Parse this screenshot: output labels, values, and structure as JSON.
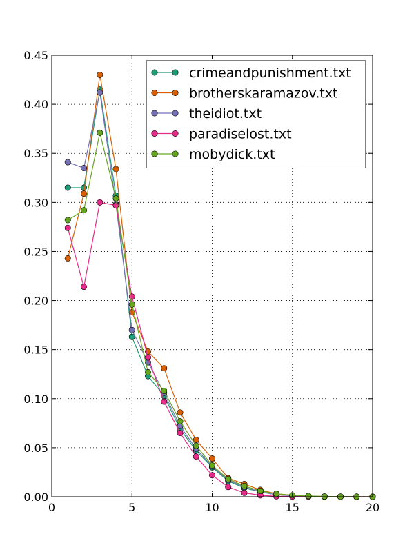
{
  "chart_data": {
    "type": "line",
    "title": "",
    "xlabel": "",
    "ylabel": "",
    "xlim": [
      0,
      20
    ],
    "ylim": [
      0,
      0.45
    ],
    "grid": true,
    "legend_position": "top-right",
    "x_ticks": [
      "0",
      "5",
      "10",
      "15",
      "20"
    ],
    "y_ticks": [
      "0.00",
      "0.05",
      "0.10",
      "0.15",
      "0.20",
      "0.25",
      "0.30",
      "0.35",
      "0.40",
      "0.45"
    ],
    "x": [
      1,
      2,
      3,
      4,
      5,
      6,
      7,
      8,
      9,
      10,
      11,
      12,
      13,
      14,
      15,
      16,
      17,
      18,
      19,
      20
    ],
    "series": [
      {
        "name": "crimeandpunishment.txt",
        "color": "#1b9e77",
        "values": [
          0.315,
          0.315,
          0.415,
          0.307,
          0.163,
          0.123,
          0.103,
          0.069,
          0.047,
          0.03,
          0.016,
          0.009,
          0.005,
          0.002,
          0.001,
          0.0005,
          0.0002,
          0.0001,
          5e-05,
          0.0
        ]
      },
      {
        "name": "brotherskaramazov.txt",
        "color": "#d95f02",
        "values": [
          0.243,
          0.309,
          0.43,
          0.334,
          0.188,
          0.148,
          0.131,
          0.086,
          0.058,
          0.039,
          0.019,
          0.013,
          0.007,
          0.003,
          0.0015,
          0.0007,
          0.0003,
          0.0001,
          5e-05,
          0.0
        ]
      },
      {
        "name": "theidiot.txt",
        "color": "#7570b3",
        "values": [
          0.341,
          0.335,
          0.412,
          0.298,
          0.17,
          0.137,
          0.106,
          0.072,
          0.049,
          0.031,
          0.017,
          0.01,
          0.005,
          0.002,
          0.001,
          0.0005,
          0.0002,
          0.0001,
          5e-05,
          0.0
        ]
      },
      {
        "name": "paradiselost.txt",
        "color": "#e7298a",
        "values": [
          0.274,
          0.214,
          0.3,
          0.297,
          0.204,
          0.142,
          0.097,
          0.065,
          0.041,
          0.022,
          0.01,
          0.004,
          0.0015,
          0.0005,
          0.0002,
          0.0001,
          5e-05,
          0.0,
          0.0,
          0.0
        ]
      },
      {
        "name": "mobydick.txt",
        "color": "#66a61e",
        "values": [
          0.282,
          0.292,
          0.371,
          0.304,
          0.196,
          0.127,
          0.108,
          0.077,
          0.052,
          0.032,
          0.018,
          0.011,
          0.006,
          0.003,
          0.0015,
          0.0008,
          0.0003,
          0.0001,
          5e-05,
          0.0
        ]
      }
    ]
  }
}
